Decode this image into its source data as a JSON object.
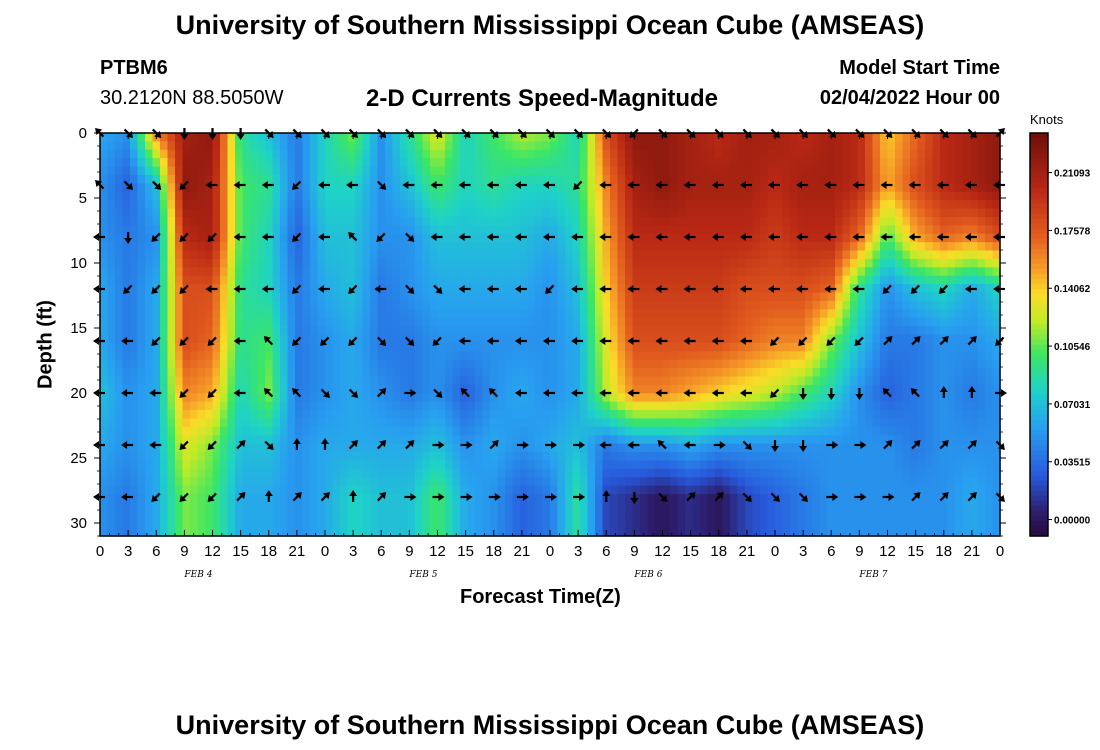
{
  "header": {
    "title": "University of Southern Mississippi Ocean Cube (AMSEAS)",
    "station_id": "PTBM6",
    "station_coords": "30.2120N  88.5050W",
    "plot_title": "2-D Currents Speed-Magnitude",
    "model_start_label": "Model Start Time",
    "model_start_value": "02/04/2022 Hour 00",
    "footer_title": "University of Southern Mississippi Ocean Cube (AMSEAS)"
  },
  "chart_data": {
    "type": "heatmap",
    "title": "2-D Currents Speed-Magnitude",
    "xlabel": "Forecast Time(Z)",
    "ylabel": "Depth (ft)",
    "x_ticks": [
      "0",
      "3",
      "6",
      "9",
      "12",
      "15",
      "18",
      "21",
      "0",
      "3",
      "6",
      "9",
      "12",
      "15",
      "18",
      "21",
      "0",
      "3",
      "6",
      "9",
      "12",
      "15",
      "18",
      "21",
      "0",
      "3",
      "6",
      "9",
      "12",
      "15",
      "18",
      "21",
      "0"
    ],
    "xlim_hours": [
      0,
      96
    ],
    "date_labels": [
      {
        "label": "FEB 4",
        "hour": 10.5
      },
      {
        "label": "FEB 5",
        "hour": 34.5
      },
      {
        "label": "FEB 6",
        "hour": 58.5
      },
      {
        "label": "FEB 7",
        "hour": 82.5
      }
    ],
    "y_ticks": [
      "0",
      "5",
      "10",
      "15",
      "20",
      "25",
      "30"
    ],
    "ylim_ft": [
      0,
      31
    ],
    "colorbar": {
      "units": "Knots",
      "range": [
        -0.01,
        0.235
      ],
      "ticks": [
        "0.00000",
        "0.03515",
        "0.07031",
        "0.10546",
        "0.14062",
        "0.17578",
        "0.21093"
      ]
    },
    "vector_depths_ft": [
      0,
      4,
      8,
      12,
      16,
      20,
      24,
      28
    ],
    "vector_hours": [
      0,
      3,
      6,
      9,
      12,
      15,
      18,
      21,
      24,
      27,
      30,
      33,
      36,
      39,
      42,
      45,
      48,
      51,
      54,
      57,
      60,
      63,
      66,
      69,
      72,
      75,
      78,
      81,
      84,
      87,
      90,
      93,
      96
    ],
    "speed_knots": [
      [
        0.06,
        0.05,
        0.16,
        0.21,
        0.22,
        0.09,
        0.07,
        0.04,
        0.08,
        0.11,
        0.05,
        0.09,
        0.13,
        0.08,
        0.1,
        0.12,
        0.11,
        0.08,
        0.18,
        0.22,
        0.22,
        0.21,
        0.2,
        0.21,
        0.21,
        0.2,
        0.21,
        0.2,
        0.14,
        0.17,
        0.2,
        0.21,
        0.22
      ],
      [
        0.05,
        0.03,
        0.07,
        0.22,
        0.21,
        0.1,
        0.09,
        0.04,
        0.08,
        0.08,
        0.05,
        0.07,
        0.1,
        0.08,
        0.09,
        0.08,
        0.08,
        0.09,
        0.16,
        0.21,
        0.22,
        0.21,
        0.21,
        0.21,
        0.2,
        0.21,
        0.21,
        0.2,
        0.15,
        0.18,
        0.2,
        0.21,
        0.22
      ],
      [
        0.05,
        0.04,
        0.05,
        0.2,
        0.21,
        0.1,
        0.08,
        0.03,
        0.07,
        0.07,
        0.05,
        0.05,
        0.07,
        0.07,
        0.07,
        0.07,
        0.06,
        0.08,
        0.15,
        0.2,
        0.2,
        0.2,
        0.2,
        0.2,
        0.19,
        0.2,
        0.2,
        0.17,
        0.1,
        0.15,
        0.17,
        0.16,
        0.18
      ],
      [
        0.06,
        0.04,
        0.06,
        0.18,
        0.18,
        0.09,
        0.08,
        0.04,
        0.06,
        0.07,
        0.04,
        0.05,
        0.06,
        0.06,
        0.06,
        0.06,
        0.05,
        0.07,
        0.14,
        0.19,
        0.19,
        0.19,
        0.19,
        0.18,
        0.18,
        0.18,
        0.17,
        0.09,
        0.05,
        0.07,
        0.08,
        0.06,
        0.08
      ],
      [
        0.06,
        0.04,
        0.06,
        0.18,
        0.17,
        0.09,
        0.1,
        0.04,
        0.05,
        0.06,
        0.04,
        0.04,
        0.05,
        0.05,
        0.05,
        0.05,
        0.05,
        0.06,
        0.13,
        0.18,
        0.18,
        0.18,
        0.18,
        0.17,
        0.16,
        0.16,
        0.11,
        0.07,
        0.04,
        0.04,
        0.05,
        0.05,
        0.06
      ],
      [
        0.07,
        0.05,
        0.06,
        0.16,
        0.15,
        0.08,
        0.11,
        0.04,
        0.05,
        0.06,
        0.05,
        0.04,
        0.05,
        0.03,
        0.05,
        0.06,
        0.05,
        0.06,
        0.12,
        0.16,
        0.16,
        0.15,
        0.14,
        0.13,
        0.12,
        0.1,
        0.08,
        0.05,
        0.03,
        0.04,
        0.05,
        0.04,
        0.05
      ],
      [
        0.06,
        0.05,
        0.06,
        0.13,
        0.11,
        0.07,
        0.07,
        0.05,
        0.06,
        0.06,
        0.06,
        0.06,
        0.07,
        0.05,
        0.06,
        0.05,
        0.06,
        0.07,
        0.04,
        0.05,
        0.05,
        0.06,
        0.05,
        0.05,
        0.05,
        0.05,
        0.05,
        0.05,
        0.05,
        0.04,
        0.05,
        0.05,
        0.05
      ],
      [
        0.05,
        0.04,
        0.06,
        0.11,
        0.1,
        0.06,
        0.06,
        0.05,
        0.06,
        0.08,
        0.07,
        0.07,
        0.1,
        0.06,
        0.05,
        0.03,
        0.04,
        0.09,
        0.02,
        0.01,
        0.0,
        0.01,
        0.0,
        0.02,
        0.03,
        0.04,
        0.05,
        0.05,
        0.05,
        0.05,
        0.05,
        0.06,
        0.05
      ]
    ],
    "vector_direction_deg": [
      [
        315,
        135,
        135,
        180,
        180,
        180,
        135,
        135,
        135,
        135,
        135,
        135,
        135,
        135,
        135,
        135,
        135,
        135,
        135,
        225,
        135,
        135,
        135,
        135,
        135,
        135,
        135,
        135,
        135,
        135,
        135,
        135,
        45
      ],
      [
        315,
        135,
        135,
        225,
        270,
        270,
        270,
        225,
        270,
        270,
        135,
        270,
        270,
        270,
        270,
        270,
        270,
        225,
        270,
        270,
        270,
        270,
        270,
        270,
        270,
        270,
        270,
        270,
        270,
        270,
        270,
        270,
        270
      ],
      [
        270,
        180,
        225,
        225,
        225,
        270,
        270,
        225,
        270,
        315,
        225,
        135,
        270,
        270,
        270,
        270,
        270,
        270,
        270,
        270,
        270,
        270,
        270,
        270,
        270,
        270,
        270,
        270,
        270,
        270,
        270,
        270,
        270
      ],
      [
        270,
        225,
        225,
        225,
        270,
        270,
        270,
        225,
        270,
        225,
        270,
        135,
        135,
        270,
        270,
        270,
        225,
        270,
        270,
        270,
        270,
        270,
        270,
        270,
        270,
        270,
        270,
        270,
        225,
        225,
        225,
        270,
        270
      ],
      [
        270,
        270,
        225,
        225,
        225,
        270,
        315,
        225,
        225,
        225,
        135,
        135,
        225,
        270,
        270,
        270,
        270,
        270,
        270,
        270,
        270,
        270,
        270,
        270,
        225,
        225,
        225,
        225,
        45,
        45,
        45,
        45,
        225
      ],
      [
        270,
        270,
        270,
        225,
        225,
        270,
        315,
        315,
        135,
        135,
        45,
        90,
        135,
        315,
        315,
        270,
        270,
        270,
        270,
        270,
        270,
        270,
        270,
        270,
        225,
        180,
        180,
        180,
        315,
        315,
        0,
        0,
        90
      ],
      [
        270,
        270,
        270,
        225,
        225,
        45,
        135,
        0,
        0,
        45,
        45,
        45,
        90,
        90,
        45,
        90,
        90,
        90,
        270,
        270,
        315,
        270,
        90,
        135,
        180,
        180,
        90,
        90,
        45,
        45,
        45,
        45,
        135
      ],
      [
        270,
        270,
        225,
        225,
        225,
        45,
        0,
        45,
        45,
        0,
        45,
        90,
        90,
        90,
        90,
        90,
        90,
        90,
        0,
        180,
        135,
        45,
        45,
        135,
        135,
        135,
        90,
        90,
        90,
        45,
        45,
        45,
        135
      ]
    ]
  }
}
